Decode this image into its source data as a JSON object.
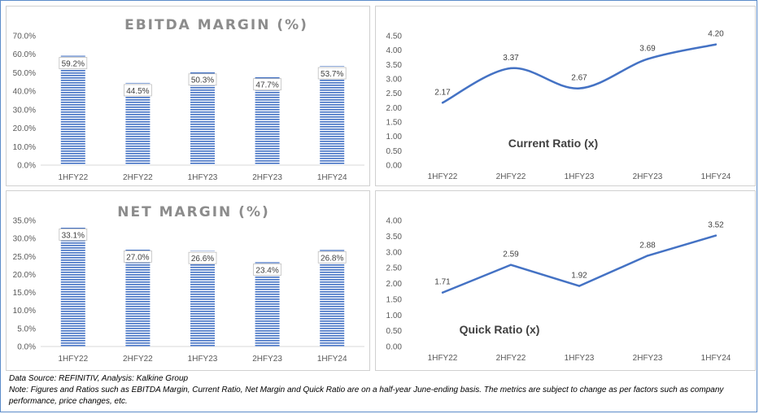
{
  "chart_data": [
    {
      "id": "ebitda",
      "type": "bar",
      "title": "EBITDA MARGIN (%)",
      "categories": [
        "1HFY22",
        "2HFY22",
        "1HFY23",
        "2HFY23",
        "1HFY24"
      ],
      "values": [
        59.2,
        44.5,
        50.3,
        47.7,
        53.7
      ],
      "data_labels": [
        "59.2%",
        "44.5%",
        "50.3%",
        "47.7%",
        "53.7%"
      ],
      "ylim": [
        0,
        70
      ],
      "yticks": [
        "0.0%",
        "10.0%",
        "20.0%",
        "30.0%",
        "40.0%",
        "50.0%",
        "60.0%",
        "70.0%"
      ],
      "bar_color": "#4472c4",
      "grid": false
    },
    {
      "id": "current",
      "type": "line",
      "title": "Current Ratio (x)",
      "categories": [
        "1HFY22",
        "2HFY22",
        "1HFY23",
        "2HFY23",
        "1HFY24"
      ],
      "values": [
        2.17,
        3.37,
        2.67,
        3.69,
        4.2
      ],
      "data_labels": [
        "2.17",
        "3.37",
        "2.67",
        "3.69",
        "4.20"
      ],
      "ylim": [
        0,
        4.5
      ],
      "yticks": [
        "0.00",
        "0.50",
        "1.00",
        "1.50",
        "2.00",
        "2.50",
        "3.00",
        "3.50",
        "4.00",
        "4.50"
      ],
      "line_color": "#4472c4",
      "smooth": true,
      "grid": false
    },
    {
      "id": "net",
      "type": "bar",
      "title": "NET MARGIN (%)",
      "categories": [
        "1HFY22",
        "2HFY22",
        "1HFY23",
        "2HFY23",
        "1HFY24"
      ],
      "values": [
        33.1,
        27.0,
        26.6,
        23.4,
        26.8
      ],
      "data_labels": [
        "33.1%",
        "27.0%",
        "26.6%",
        "23.4%",
        "26.8%"
      ],
      "ylim": [
        0,
        35
      ],
      "yticks": [
        "0.0%",
        "5.0%",
        "10.0%",
        "15.0%",
        "20.0%",
        "25.0%",
        "30.0%",
        "35.0%"
      ],
      "bar_color": "#4472c4",
      "grid": false
    },
    {
      "id": "quick",
      "type": "line",
      "title": "Quick Ratio (x)",
      "categories": [
        "1HFY22",
        "2HFY22",
        "1HFY23",
        "2HFY23",
        "1HFY24"
      ],
      "values": [
        1.71,
        2.59,
        1.92,
        2.88,
        3.52
      ],
      "data_labels": [
        "1.71",
        "2.59",
        "1.92",
        "2.88",
        "3.52"
      ],
      "ylim": [
        0,
        4
      ],
      "yticks": [
        "0.00",
        "0.50",
        "1.00",
        "1.50",
        "2.00",
        "2.50",
        "3.00",
        "3.50",
        "4.00"
      ],
      "line_color": "#4472c4",
      "smooth": false,
      "grid": false
    }
  ],
  "footer": {
    "source": "Data Source: REFINITIV, Analysis: Kalkine Group",
    "note": "Note: Figures and Ratios such as EBITDA Margin, Current Ratio, Net Margin and Quick Ratio are on a half-year June-ending basis. The metrics are subject to change as per factors such as company performance, price changes, etc."
  }
}
